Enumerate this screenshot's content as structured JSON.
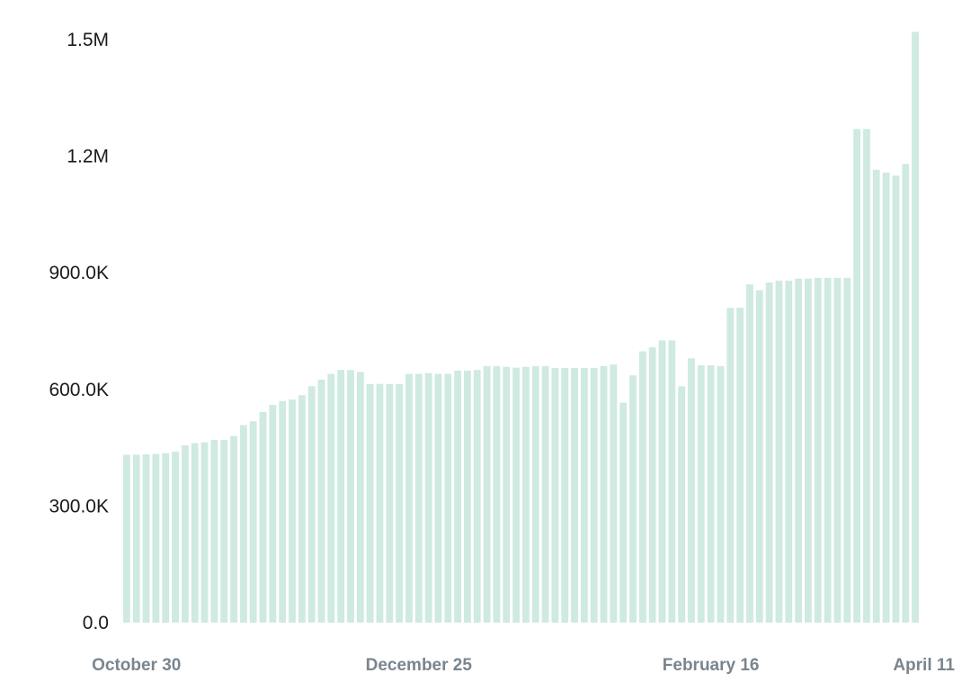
{
  "chart_data": {
    "type": "bar",
    "title": "",
    "xlabel": "",
    "ylabel": "",
    "bar_color": "#cfeae0",
    "ylim": [
      0,
      1500000
    ],
    "y_ticks": [
      {
        "value": 0,
        "label": "0.0"
      },
      {
        "value": 300000,
        "label": "300.0K"
      },
      {
        "value": 600000,
        "label": "600.0K"
      },
      {
        "value": 900000,
        "label": "900.0K"
      },
      {
        "value": 1200000,
        "label": "1.2M"
      },
      {
        "value": 1500000,
        "label": "1.5M"
      }
    ],
    "x_ticks": [
      {
        "index": 1,
        "label": "October 30"
      },
      {
        "index": 30,
        "label": "December 25"
      },
      {
        "index": 60,
        "label": "February 16"
      },
      {
        "index": 89,
        "label": "April 11"
      }
    ],
    "values": [
      432000,
      432000,
      433000,
      434000,
      436000,
      440000,
      456000,
      462000,
      464000,
      470000,
      470000,
      480000,
      508000,
      518000,
      542000,
      560000,
      570000,
      574000,
      585000,
      608000,
      625000,
      640000,
      650000,
      650000,
      645000,
      614000,
      614000,
      614000,
      614000,
      640000,
      640000,
      642000,
      640000,
      640000,
      648000,
      648000,
      650000,
      660000,
      660000,
      658000,
      656000,
      658000,
      660000,
      660000,
      655000,
      655000,
      655000,
      655000,
      655000,
      660000,
      664000,
      566000,
      636000,
      698000,
      708000,
      726000,
      726000,
      608000,
      680000,
      662000,
      662000,
      660000,
      810000,
      810000,
      870000,
      855000,
      875000,
      880000,
      880000,
      885000,
      885000,
      887000,
      887000,
      887000,
      887000,
      1270000,
      1270000,
      1165000,
      1158000,
      1150000,
      1180000,
      1520000
    ]
  }
}
